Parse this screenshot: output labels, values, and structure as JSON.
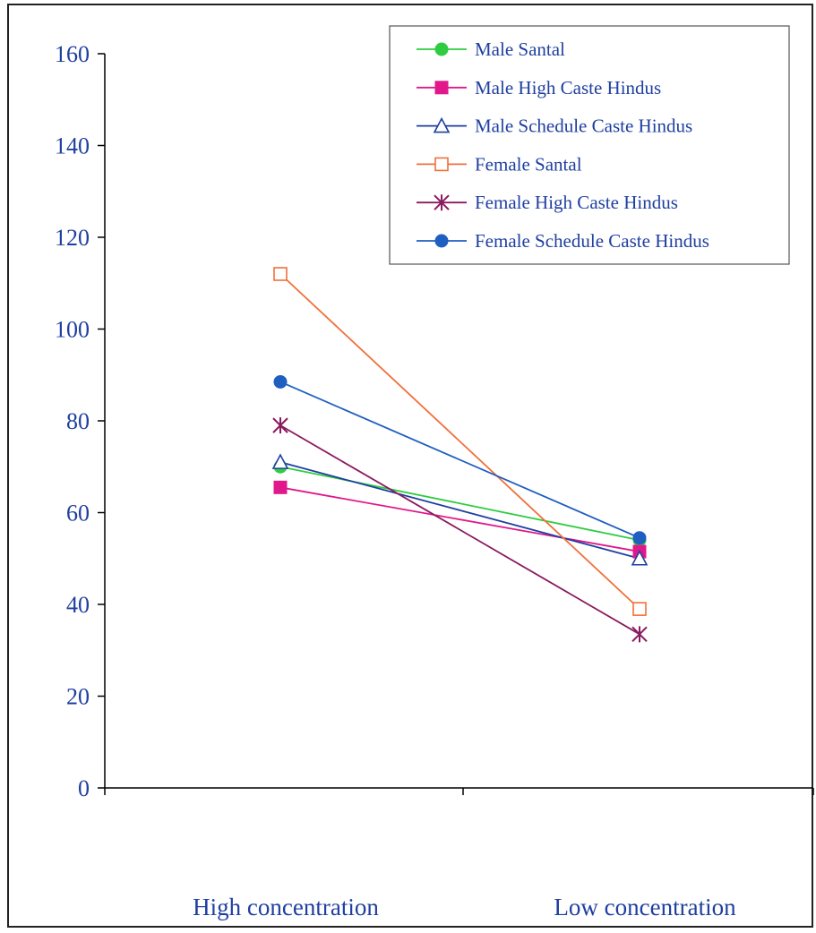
{
  "chart_data": {
    "type": "line",
    "title": "",
    "xlabel": "",
    "ylabel": "",
    "categories": [
      "High concentration",
      "Low concentration"
    ],
    "ylim": [
      0,
      160
    ],
    "yticks": [
      0,
      20,
      40,
      60,
      80,
      100,
      120,
      140,
      160
    ],
    "grid": false,
    "legend_position": "top-right",
    "series": [
      {
        "name": "Male Santal",
        "values": [
          70,
          54
        ],
        "color": "#2ecc40",
        "marker": "filled-circle"
      },
      {
        "name": "Male High Caste Hindus",
        "values": [
          65.5,
          51.5
        ],
        "color": "#e0188c",
        "marker": "filled-square"
      },
      {
        "name": "Male Schedule Caste Hindus",
        "values": [
          71,
          50
        ],
        "color": "#1f3fa0",
        "marker": "open-triangle"
      },
      {
        "name": "Female Santal",
        "values": [
          112,
          39
        ],
        "color": "#f0703a",
        "marker": "open-square"
      },
      {
        "name": "Female High Caste Hindus",
        "values": [
          79,
          33.5
        ],
        "color": "#8b1a5e",
        "marker": "asterisk"
      },
      {
        "name": "Female Schedule Caste Hindus",
        "values": [
          88.5,
          54.5
        ],
        "color": "#1f5fc0",
        "marker": "filled-circle"
      }
    ]
  }
}
